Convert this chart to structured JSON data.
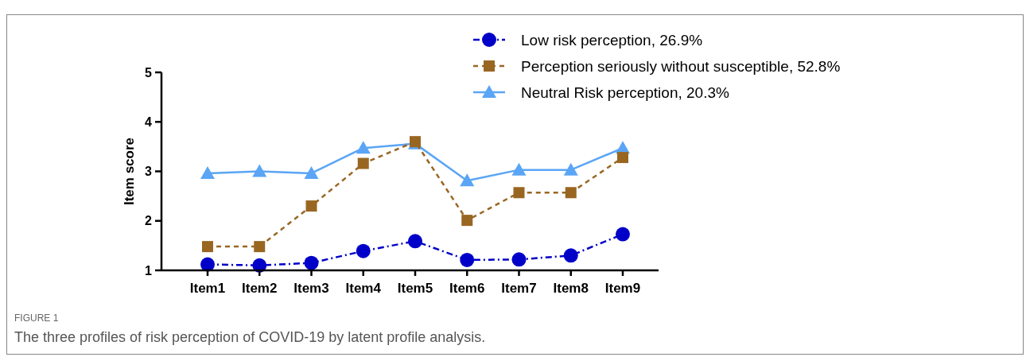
{
  "chart_data": {
    "type": "line",
    "ylabel": "Item score",
    "categories": [
      "Item1",
      "Item2",
      "Item3",
      "Item4",
      "Item5",
      "Item6",
      "Item7",
      "Item8",
      "Item9"
    ],
    "series": [
      {
        "name": "Low risk perception, 26.9%",
        "color": "#0000c8",
        "marker": "circle",
        "line_style": "dashdot",
        "values": [
          1.12,
          1.1,
          1.15,
          1.39,
          1.59,
          1.21,
          1.22,
          1.3,
          1.73
        ]
      },
      {
        "name": "Perception seriously without susceptible, 52.8%",
        "color": "#996622",
        "marker": "square",
        "line_style": "dashed",
        "values": [
          1.48,
          1.48,
          2.3,
          3.16,
          3.6,
          2.01,
          2.57,
          2.57,
          3.28
        ]
      },
      {
        "name": "Neutral Risk perception, 20.3%",
        "color": "#5aa5f5",
        "marker": "triangle",
        "line_style": "solid",
        "values": [
          2.96,
          3.0,
          2.96,
          3.47,
          3.56,
          2.81,
          3.03,
          3.03,
          3.47
        ]
      }
    ],
    "ylim": [
      1,
      5
    ],
    "yticks": [
      1,
      2,
      3,
      4,
      5
    ],
    "grid": false,
    "legend": "top right",
    "annotations": [
      "FIGURE 1",
      "The three profiles of risk perception of COVID-19 by latent profile analysis."
    ]
  }
}
